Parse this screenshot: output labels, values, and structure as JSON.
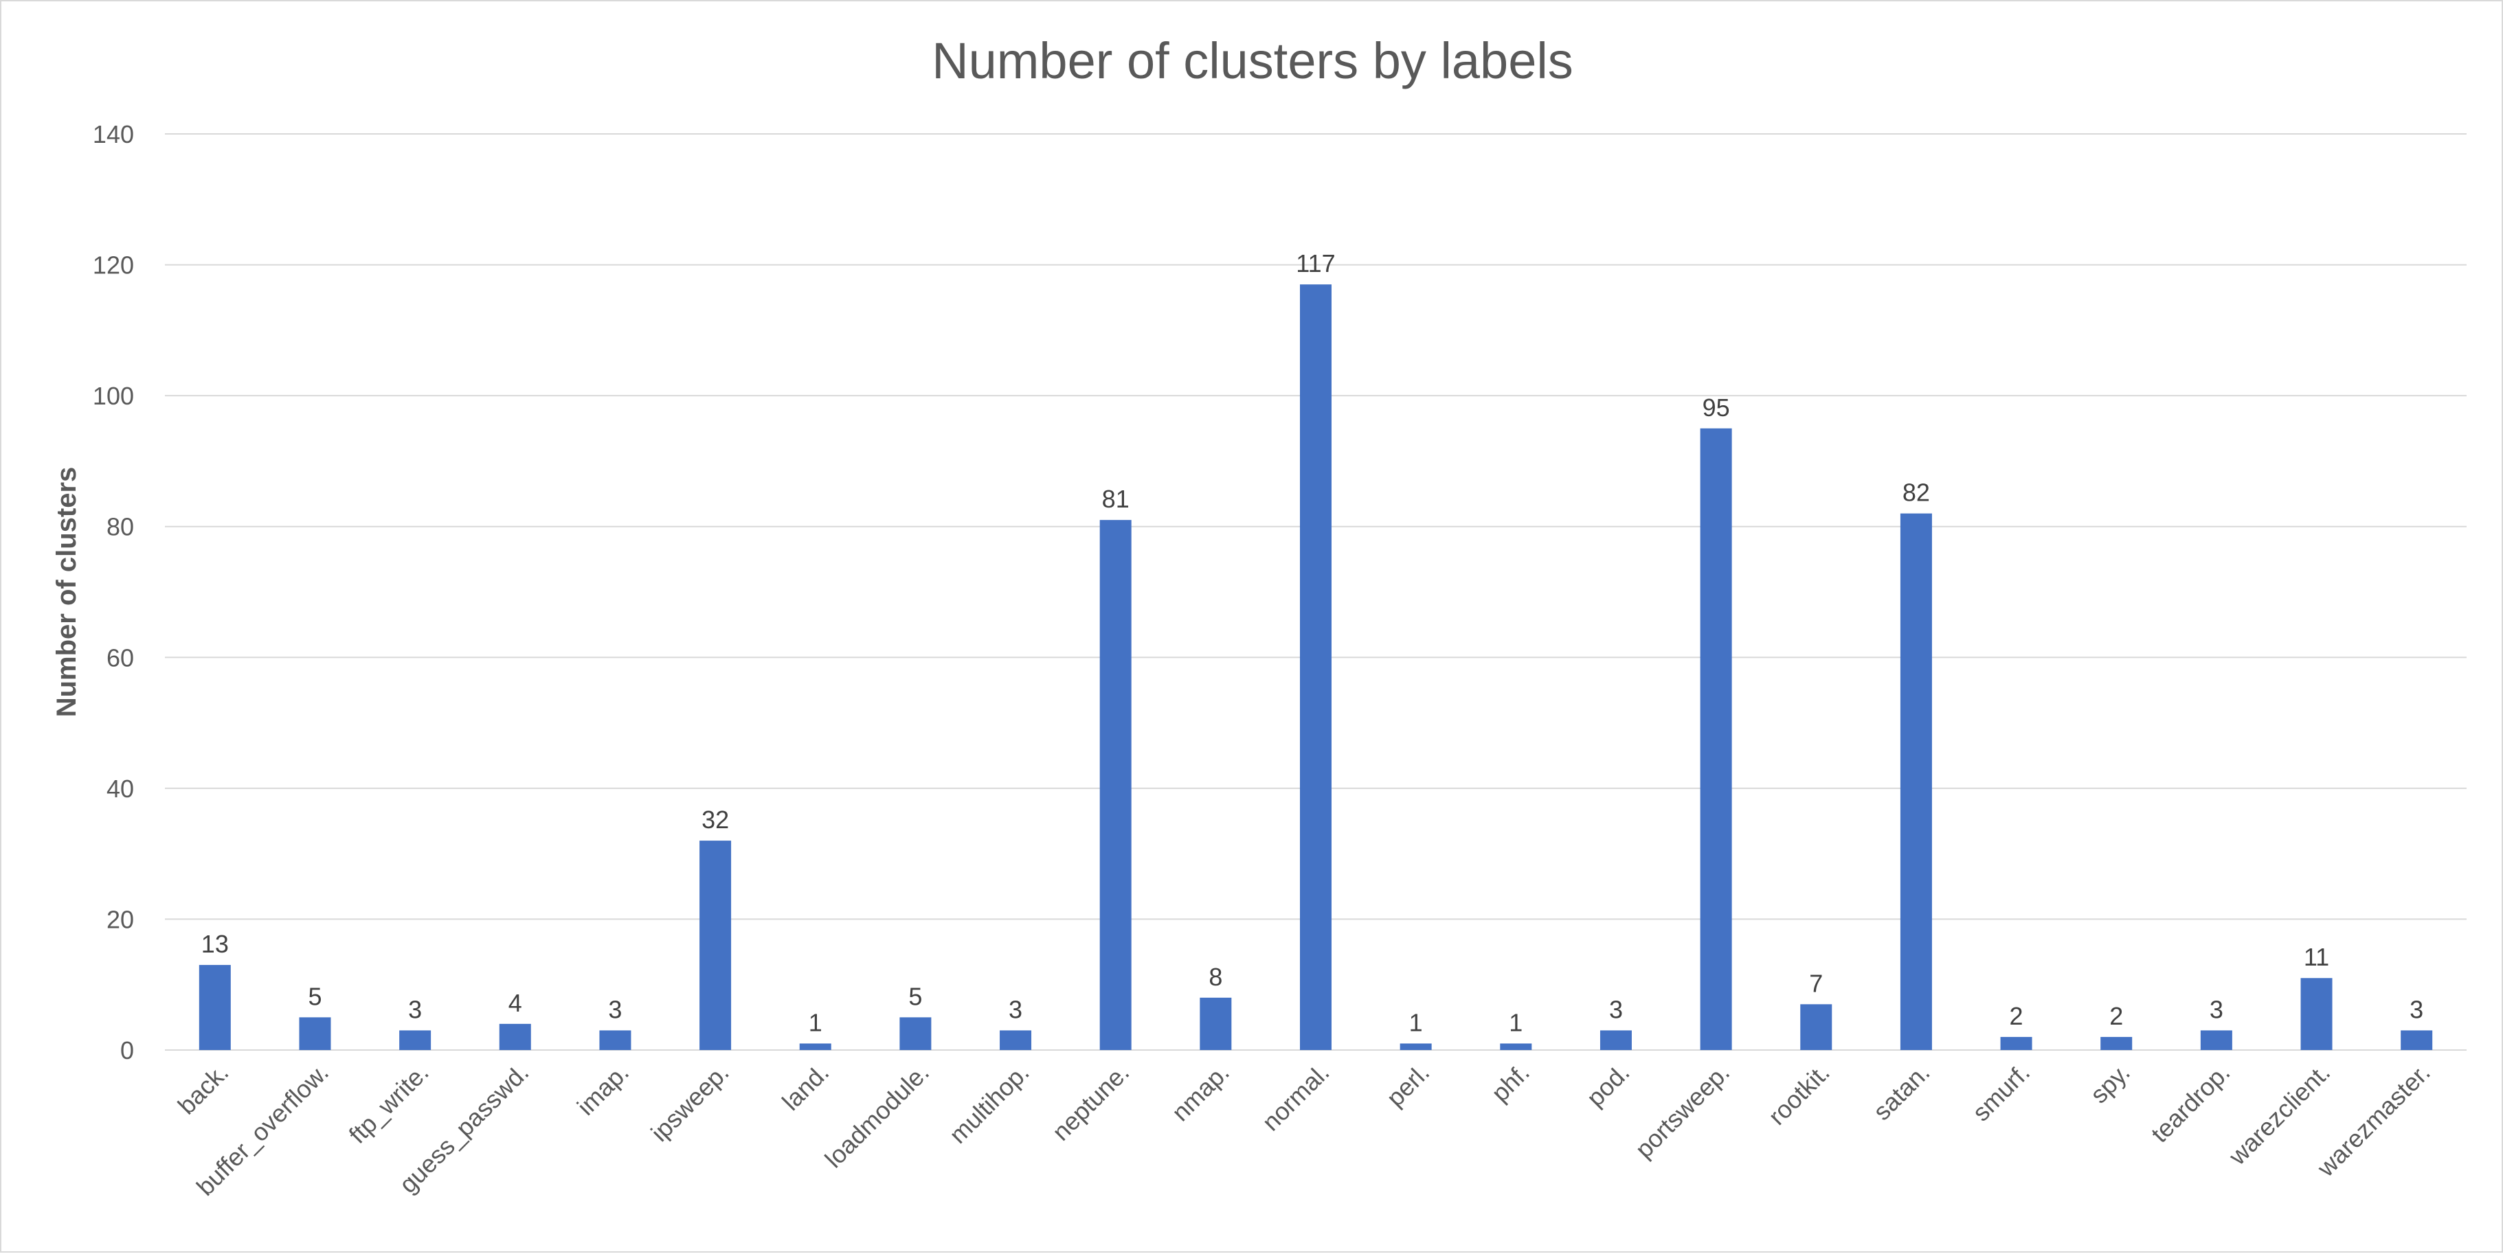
{
  "chart_data": {
    "type": "bar",
    "title": "Number of clusters by labels",
    "xlabel": "",
    "ylabel": "Number of clusters",
    "ylim": [
      0,
      140
    ],
    "yticks": [
      0,
      20,
      40,
      60,
      80,
      100,
      120,
      140
    ],
    "grid": true,
    "legend": "none",
    "bar_color": "#4472C4",
    "categories": [
      "back.",
      "buffer_overflow.",
      "ftp_write.",
      "guess_passwd.",
      "imap.",
      "ipsweep.",
      "land.",
      "loadmodule.",
      "multihop.",
      "neptune.",
      "nmap.",
      "normal.",
      "perl.",
      "phf.",
      "pod.",
      "portsweep.",
      "rootkit.",
      "satan.",
      "smurf.",
      "spy.",
      "teardrop.",
      "warezclient.",
      "warezmaster."
    ],
    "values": [
      13,
      5,
      3,
      4,
      3,
      32,
      1,
      5,
      3,
      81,
      8,
      117,
      1,
      1,
      3,
      95,
      7,
      82,
      2,
      2,
      3,
      11,
      3
    ]
  }
}
